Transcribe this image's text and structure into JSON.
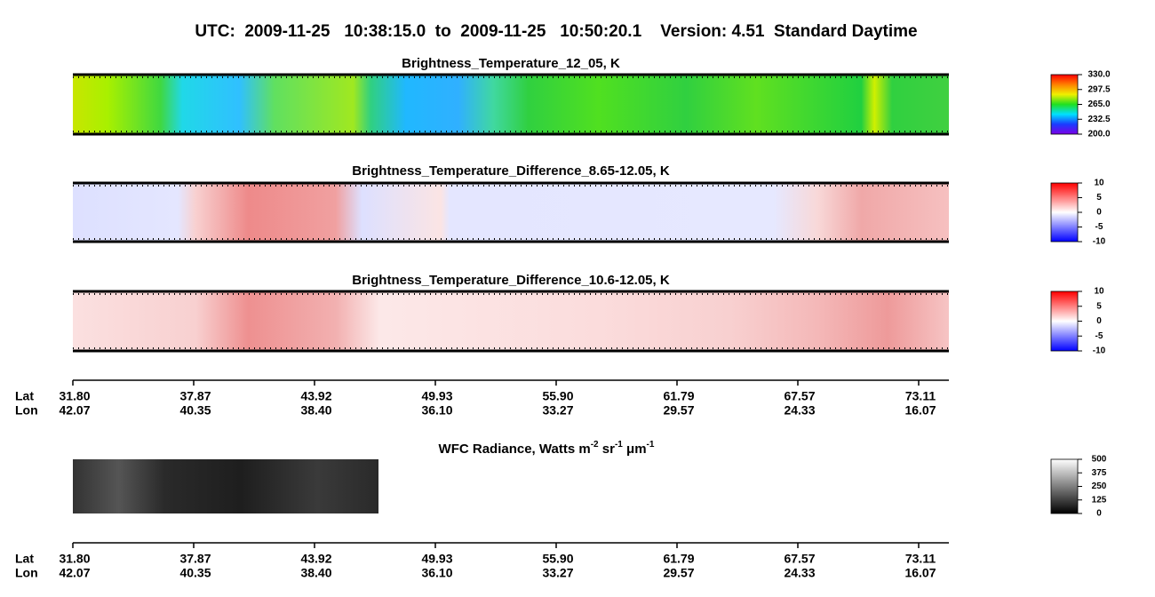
{
  "title": "UTC:  2009-11-25   10:38:15.0  to  2009-11-25   10:50:20.1    Version: 4.51  Standard Daytime",
  "chart_data": [
    {
      "type": "image-strip",
      "title": "Brightness_Temperature_12_05, K",
      "colorbar": {
        "lim": [
          200,
          330
        ],
        "ticks": [
          {
            "value": 330,
            "label": "330.0"
          },
          297.5,
          {
            "value": 265,
            "label": "265.0"
          },
          232.5,
          {
            "value": 200,
            "label": "200.0"
          }
        ],
        "colormap": [
          "#7a00e6",
          "#1a3cff",
          "#00e0ff",
          "#20e020",
          "#f0f000",
          "#ff8000",
          "#ff0000"
        ]
      }
    },
    {
      "type": "image-strip",
      "title": "Brightness_Temperature_Difference_8.65-12.05, K",
      "colorbar": {
        "lim": [
          -10,
          10
        ],
        "ticks": [
          10,
          5,
          0,
          -5,
          -10
        ],
        "colormap": [
          "#0000ff",
          "#ffffff",
          "#ff0000"
        ]
      }
    },
    {
      "type": "image-strip",
      "title": "Brightness_Temperature_Difference_10.6-12.05, K",
      "colorbar": {
        "lim": [
          -10,
          10
        ],
        "ticks": [
          10,
          5,
          0,
          -5,
          -10
        ],
        "colormap": [
          "#0000ff",
          "#ffffff",
          "#ff0000"
        ]
      }
    },
    {
      "type": "image-strip",
      "title_parts": [
        "WFC Radiance, Watts m",
        "-2",
        " sr",
        "-1",
        " μm",
        "-1"
      ],
      "colorbar": {
        "lim": [
          0,
          500
        ],
        "ticks": [
          500,
          375,
          250,
          125,
          0
        ],
        "colormap": [
          "#000000",
          "#ffffff"
        ]
      }
    }
  ],
  "axes": [
    {
      "lat_label": "Lat",
      "lon_label": "Lon",
      "lat": [
        "31.80",
        "37.87",
        "43.92",
        "49.93",
        "55.90",
        "61.79",
        "67.57",
        "73.11"
      ],
      "lon": [
        "42.07",
        "40.35",
        "38.40",
        "36.10",
        "33.27",
        "29.57",
        "24.33",
        "16.07"
      ]
    },
    {
      "lat_label": "Lat",
      "lon_label": "Lon",
      "lat": [
        "31.80",
        "37.87",
        "43.92",
        "49.93",
        "55.90",
        "61.79",
        "67.57",
        "73.11"
      ],
      "lon": [
        "42.07",
        "40.35",
        "38.40",
        "36.10",
        "33.27",
        "29.57",
        "24.33",
        "16.07"
      ]
    }
  ]
}
